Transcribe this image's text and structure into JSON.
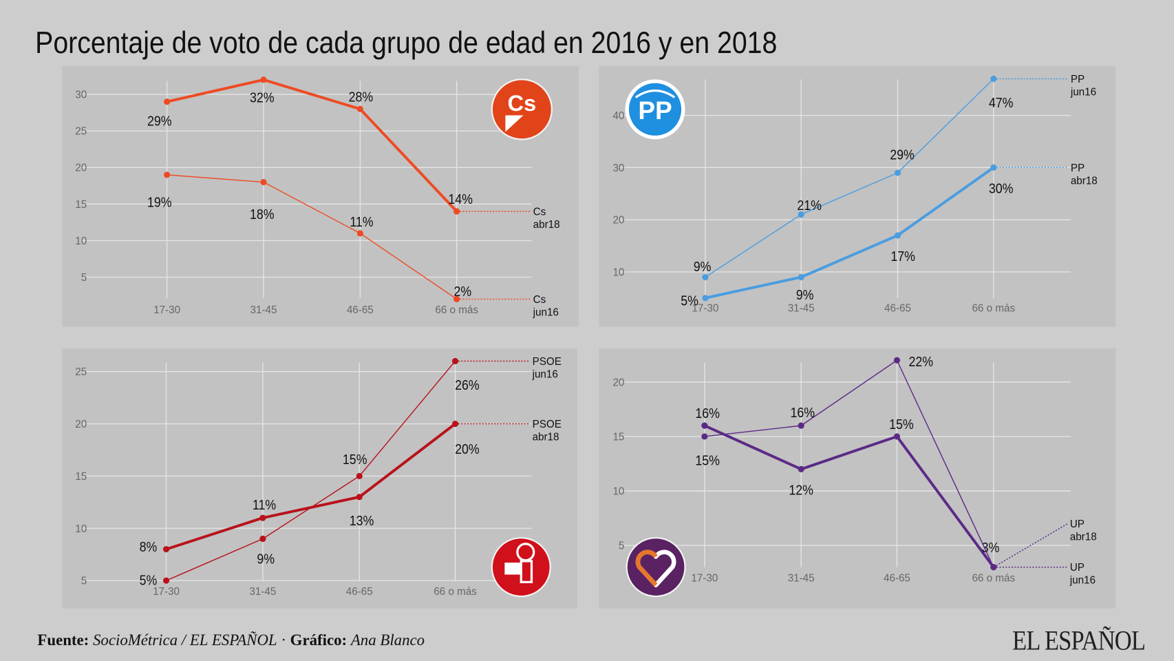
{
  "title": "Porcentaje de voto de cada grupo de edad en 2016 y en 2018",
  "footer": {
    "source_label": "Fuente:",
    "source_value": "SocioMétrica / EL ESPAÑOL",
    "separator": "·",
    "graphic_label": "Gráfico:",
    "graphic_value": "Ana Blanco",
    "brand": "EL ESPAÑOL"
  },
  "chart_data": [
    {
      "type": "line",
      "party": "Cs",
      "logo_text": "Cs",
      "color": "#ef4a23",
      "categories": [
        "17-30",
        "31-45",
        "46-65",
        "66 o más"
      ],
      "yticks": [
        5,
        10,
        15,
        20,
        25,
        30
      ],
      "grid": true,
      "series": [
        {
          "label": [
            "Cs",
            "abr18"
          ],
          "values": [
            29,
            32,
            28,
            14
          ],
          "data_labels": [
            "29%",
            "32%",
            "28%",
            "14%"
          ],
          "weight": "thick"
        },
        {
          "label": [
            "Cs",
            "jun16"
          ],
          "values": [
            19,
            18,
            11,
            2
          ],
          "data_labels": [
            "19%",
            "18%",
            "11%",
            "2%"
          ],
          "weight": "thin"
        }
      ]
    },
    {
      "type": "line",
      "party": "PP",
      "logo_text": "PP",
      "color": "#4a9de0",
      "categories": [
        "17-30",
        "31-45",
        "46-65",
        "66 o más"
      ],
      "yticks": [
        10,
        20,
        30,
        40
      ],
      "grid": true,
      "series": [
        {
          "label": [
            "PP",
            "jun16"
          ],
          "values": [
            9,
            21,
            29,
            47
          ],
          "data_labels": [
            "9%",
            "21%",
            "29%",
            "47%"
          ],
          "weight": "thin"
        },
        {
          "label": [
            "PP",
            "abr18"
          ],
          "values": [
            5,
            9,
            17,
            30
          ],
          "data_labels": [
            "5%",
            "9%",
            "17%",
            "30%"
          ],
          "weight": "thick"
        }
      ]
    },
    {
      "type": "line",
      "party": "PSOE",
      "logo_text": "",
      "color": "#b8121b",
      "categories": [
        "17-30",
        "31-45",
        "46-65",
        "66 o más"
      ],
      "yticks": [
        5,
        10,
        15,
        20,
        25
      ],
      "grid": true,
      "series": [
        {
          "label": [
            "PSOE",
            "jun16"
          ],
          "values": [
            5,
            9,
            15,
            26
          ],
          "data_labels": [
            "5%",
            "9%",
            "15%",
            "26%"
          ],
          "weight": "thin"
        },
        {
          "label": [
            "PSOE",
            "abr18"
          ],
          "values": [
            8,
            11,
            13,
            20
          ],
          "data_labels": [
            "8%",
            "11%",
            "13%",
            "20%"
          ],
          "weight": "thick"
        }
      ]
    },
    {
      "type": "line",
      "party": "UP",
      "logo_text": "",
      "color": "#5b2a86",
      "categories": [
        "17-30",
        "31-45",
        "46-65",
        "66 o más"
      ],
      "yticks": [
        5,
        10,
        15,
        20
      ],
      "grid": true,
      "series": [
        {
          "label": [
            "UP",
            "abr18"
          ],
          "values": [
            16,
            12,
            15,
            3
          ],
          "data_labels": [
            "16%",
            "12%",
            "15%",
            "3%"
          ],
          "weight": "thick"
        },
        {
          "label": [
            "UP",
            "jun16"
          ],
          "values": [
            15,
            16,
            22,
            3
          ],
          "data_labels": [
            "15%",
            "16%",
            "22%",
            ""
          ],
          "weight": "thin"
        }
      ]
    }
  ]
}
